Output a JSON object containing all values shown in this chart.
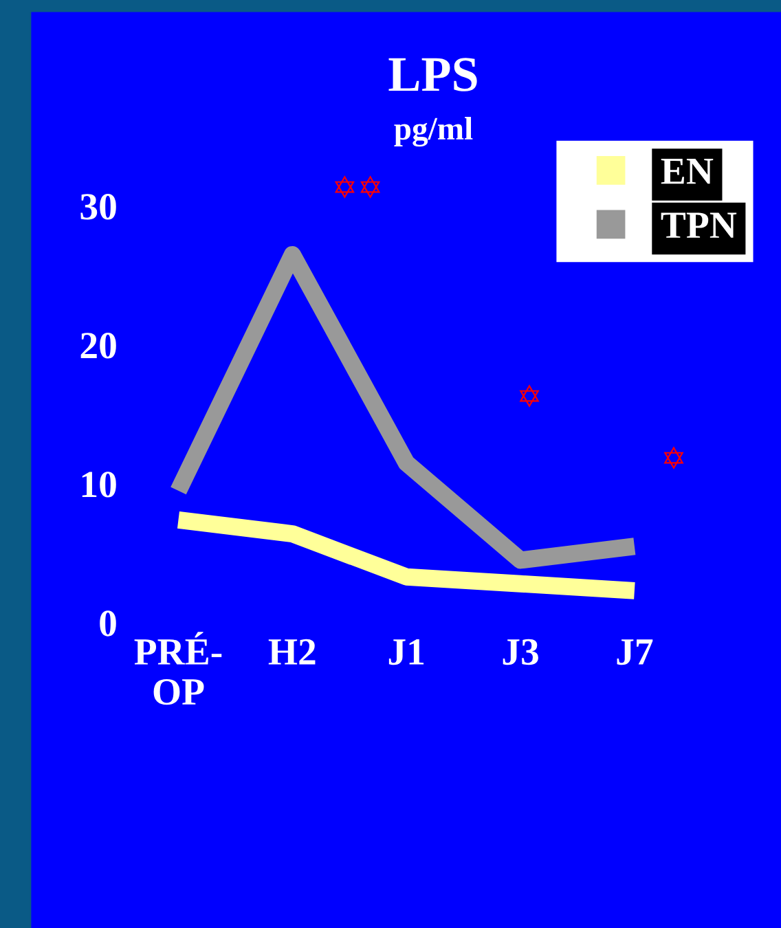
{
  "chart_data": {
    "type": "line",
    "title": "LPS",
    "subtitle": "pg/ml",
    "categories": [
      "PRÉ-OP",
      "H2",
      "J1",
      "J3",
      "J7"
    ],
    "series": [
      {
        "name": "EN",
        "color": "#ffff99",
        "values": [
          7.4,
          6.4,
          3.3,
          2.8,
          2.3
        ]
      },
      {
        "name": "TPN",
        "color": "#999999",
        "values": [
          9.5,
          26.5,
          11.5,
          4.5,
          5.5
        ]
      }
    ],
    "ylim": [
      0,
      30
    ],
    "yticks": [
      0,
      10,
      20,
      30
    ],
    "grid": false,
    "legend": "top right",
    "marker": "none",
    "line_style": "solid",
    "annotations": [
      "✡✡",
      "✡",
      "✡"
    ]
  }
}
